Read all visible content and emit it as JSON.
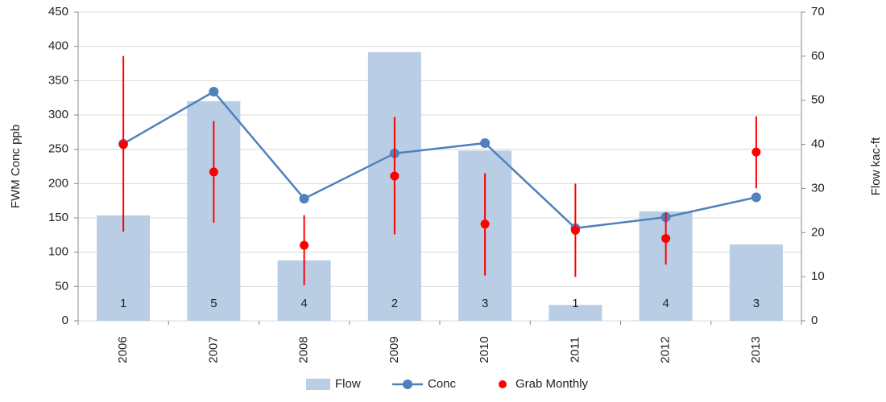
{
  "chart_data": {
    "type": "combo",
    "categories": [
      "2006",
      "2007",
      "2008",
      "2009",
      "2010",
      "2011",
      "2012",
      "2013"
    ],
    "ylabel": "FWM Conc ppb",
    "y2label": "Flow kac-ft",
    "ylim": [
      0,
      450
    ],
    "yticks": [
      0,
      50,
      100,
      150,
      200,
      250,
      300,
      350,
      400,
      450
    ],
    "y2lim": [
      0,
      70
    ],
    "y2ticks": [
      0,
      10,
      20,
      30,
      40,
      50,
      60,
      70
    ],
    "grid": true,
    "legend": "bottom",
    "series": [
      {
        "name": "Flow",
        "type": "bar",
        "axis": "y2",
        "color": "#b9cde5",
        "values": [
          23.9,
          49.8,
          13.7,
          60.9,
          38.6,
          3.6,
          24.8,
          17.3
        ],
        "data_labels": [
          1,
          5,
          4,
          2,
          3,
          1,
          4,
          3
        ]
      },
      {
        "name": "Conc",
        "type": "line",
        "color": "#4f81bd",
        "values": [
          258,
          334,
          178,
          244,
          259,
          135,
          151,
          180
        ]
      },
      {
        "name": "Grab Monthly",
        "type": "scatter",
        "color": "#ff0000",
        "values": [
          257,
          217,
          110,
          211,
          141,
          132,
          120,
          246
        ],
        "err_minus": [
          127,
          74,
          58,
          85,
          75,
          68,
          38,
          53
        ],
        "err_plus": [
          129,
          74,
          44,
          86,
          74,
          68,
          38,
          52
        ]
      }
    ]
  }
}
